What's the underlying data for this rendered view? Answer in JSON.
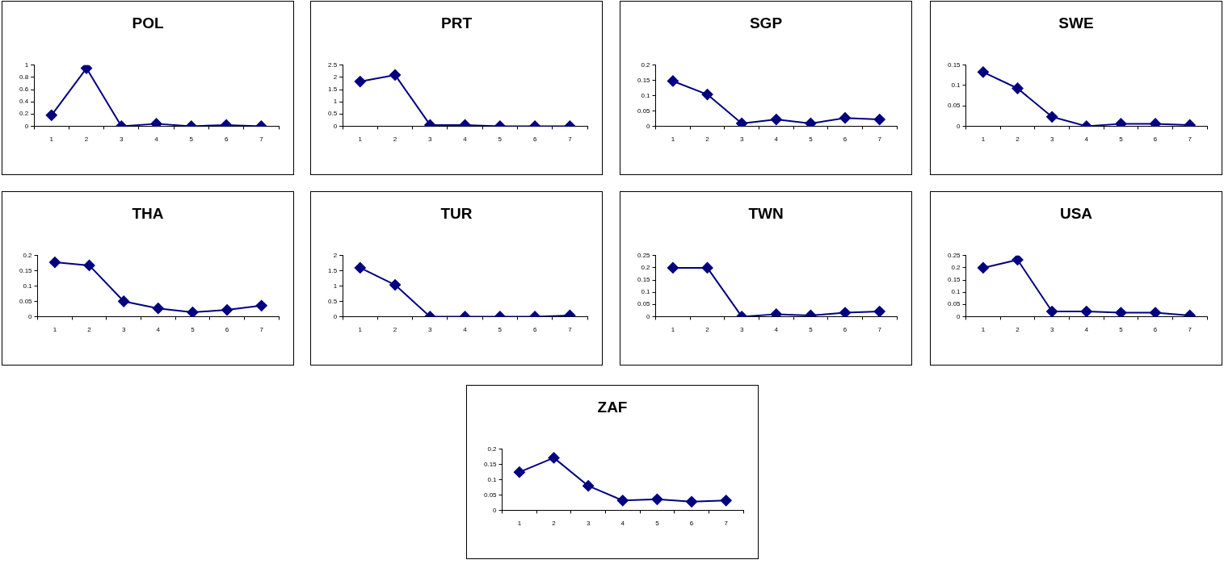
{
  "chart_data": [
    {
      "type": "line",
      "title": "POL",
      "categories": [
        "1",
        "2",
        "3",
        "4",
        "5",
        "6",
        "7"
      ],
      "series": [
        {
          "color": "#000080",
          "values": [
            0.18,
            0.95,
            0,
            0.04,
            0,
            0.02,
            0
          ]
        }
      ],
      "ylim": [
        0,
        1
      ],
      "yticks": [
        0,
        0.2,
        0.4,
        0.6,
        0.8,
        1
      ],
      "marker": "diamond",
      "grid": false,
      "legend": false
    },
    {
      "type": "line",
      "title": "PRT",
      "categories": [
        "1",
        "2",
        "3",
        "4",
        "5",
        "6",
        "7"
      ],
      "series": [
        {
          "color": "#000080",
          "values": [
            1.83,
            2.1,
            0.05,
            0.05,
            0,
            0,
            0
          ]
        }
      ],
      "ylim": [
        0,
        2.5
      ],
      "yticks": [
        0,
        0.5,
        1,
        1.5,
        2,
        2.5
      ],
      "marker": "diamond",
      "grid": false,
      "legend": false
    },
    {
      "type": "line",
      "title": "SGP",
      "categories": [
        "1",
        "2",
        "3",
        "4",
        "5",
        "6",
        "7"
      ],
      "series": [
        {
          "color": "#000080",
          "values": [
            0.148,
            0.104,
            0.009,
            0.022,
            0.009,
            0.027,
            0.022
          ]
        }
      ],
      "ylim": [
        0,
        0.2
      ],
      "yticks": [
        0,
        0.05,
        0.1,
        0.15,
        0.2
      ],
      "marker": "diamond",
      "grid": false,
      "legend": false
    },
    {
      "type": "line",
      "title": "SWE",
      "categories": [
        "1",
        "2",
        "3",
        "4",
        "5",
        "6",
        "7"
      ],
      "series": [
        {
          "color": "#000080",
          "values": [
            0.133,
            0.093,
            0.023,
            0,
            0.006,
            0.006,
            0.003
          ]
        }
      ],
      "ylim": [
        0,
        0.15
      ],
      "yticks": [
        0,
        0.05,
        0.1,
        0.15
      ],
      "marker": "diamond",
      "grid": false,
      "legend": false
    },
    {
      "type": "line",
      "title": "THA",
      "categories": [
        "1",
        "2",
        "3",
        "4",
        "5",
        "6",
        "7"
      ],
      "series": [
        {
          "color": "#000080",
          "values": [
            0.178,
            0.168,
            0.05,
            0.027,
            0.014,
            0.022,
            0.036
          ]
        }
      ],
      "ylim": [
        0,
        0.2
      ],
      "yticks": [
        0,
        0.05,
        0.1,
        0.15,
        0.2
      ],
      "marker": "diamond",
      "grid": false,
      "legend": false
    },
    {
      "type": "line",
      "title": "TUR",
      "categories": [
        "1",
        "2",
        "3",
        "4",
        "5",
        "6",
        "7"
      ],
      "series": [
        {
          "color": "#000080",
          "values": [
            1.6,
            1.04,
            0,
            0,
            0,
            0,
            0.04
          ]
        }
      ],
      "ylim": [
        0,
        2
      ],
      "yticks": [
        0,
        0.5,
        1,
        1.5,
        2
      ],
      "marker": "diamond",
      "grid": false,
      "legend": false
    },
    {
      "type": "line",
      "title": "TWN",
      "categories": [
        "1",
        "2",
        "3",
        "4",
        "5",
        "6",
        "7"
      ],
      "series": [
        {
          "color": "#000080",
          "values": [
            0.2,
            0.2,
            0,
            0.01,
            0.005,
            0.016,
            0.021
          ]
        }
      ],
      "ylim": [
        0,
        0.25
      ],
      "yticks": [
        0,
        0.05,
        0.1,
        0.15,
        0.2,
        0.25
      ],
      "marker": "diamond",
      "grid": false,
      "legend": false
    },
    {
      "type": "line",
      "title": "USA",
      "categories": [
        "1",
        "2",
        "3",
        "4",
        "5",
        "6",
        "7"
      ],
      "series": [
        {
          "color": "#000080",
          "values": [
            0.2,
            0.233,
            0.021,
            0.021,
            0.016,
            0.016,
            0.005
          ]
        }
      ],
      "ylim": [
        0,
        0.25
      ],
      "yticks": [
        0,
        0.05,
        0.1,
        0.15,
        0.2,
        0.25
      ],
      "marker": "diamond",
      "grid": false,
      "legend": false
    },
    {
      "type": "line",
      "title": "ZAF",
      "categories": [
        "1",
        "2",
        "3",
        "4",
        "5",
        "6",
        "7"
      ],
      "series": [
        {
          "color": "#000080",
          "values": [
            0.125,
            0.172,
            0.08,
            0.032,
            0.036,
            0.028,
            0.032
          ]
        }
      ],
      "ylim": [
        0,
        0.2
      ],
      "yticks": [
        0,
        0.05,
        0.1,
        0.15,
        0.2
      ],
      "marker": "diamond",
      "grid": false,
      "legend": false
    }
  ]
}
